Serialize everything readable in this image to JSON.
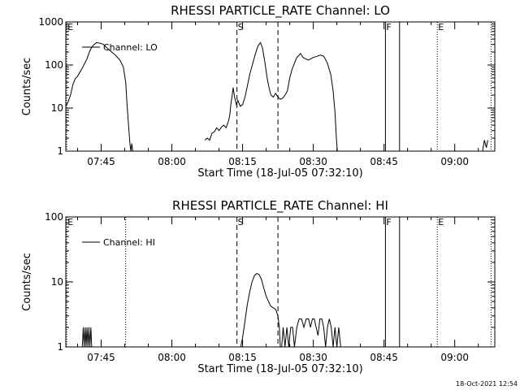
{
  "footer": {
    "timestamp": "18-Oct-2021 12:54"
  },
  "chart_data": [
    {
      "type": "line",
      "title": "RHESSI PARTICLE_RATE Channel: LO",
      "xlabel": "Start Time (18-Jul-05 07:32:10)",
      "ylabel": "Counts/sec",
      "yscale": "log",
      "ylim": [
        1,
        1000
      ],
      "xlim_minutes_after_07_30": [
        7.5,
        98.5
      ],
      "xticks": [
        {
          "label": "07:45",
          "t": 15
        },
        {
          "label": "08:00",
          "t": 30
        },
        {
          "label": "08:15",
          "t": 45
        },
        {
          "label": "08:30",
          "t": 60
        },
        {
          "label": "08:45",
          "t": 75
        },
        {
          "label": "09:00",
          "t": 90
        }
      ],
      "yticks": [
        {
          "label": "1",
          "v": 1
        },
        {
          "label": "10",
          "v": 10
        },
        {
          "label": "100",
          "v": 100
        },
        {
          "label": "1000",
          "v": 1000
        }
      ],
      "legend": {
        "label": "Channel: LO",
        "position": "top-left"
      },
      "markers": [
        {
          "label": "E",
          "t": 7.7,
          "style": "dotted"
        },
        {
          "label": "S",
          "t": 43.8,
          "style": "dashed"
        },
        {
          "label": "",
          "t": 52.5,
          "style": "dashed"
        },
        {
          "label": "F",
          "t": 75.3,
          "style": "solid"
        },
        {
          "label": "",
          "t": 78.3,
          "style": "solid"
        },
        {
          "label": "E",
          "t": 86.3,
          "style": "dotted"
        },
        {
          "label": "",
          "t": 97.7,
          "style": "dotted"
        }
      ],
      "series": [
        {
          "name": "Channel: LO",
          "segments": [
            [
              [
                7.5,
                11
              ],
              [
                8,
                14
              ],
              [
                8.5,
                20
              ],
              [
                9,
                35
              ],
              [
                9.5,
                48
              ],
              [
                10,
                55
              ],
              [
                11,
                85
              ],
              [
                12,
                140
              ],
              [
                12.5,
                200
              ],
              [
                13,
                260
              ],
              [
                13.5,
                300
              ],
              [
                14,
                330
              ],
              [
                14.8,
                320
              ],
              [
                15.5,
                300
              ],
              [
                16.2,
                250
              ],
              [
                17,
                210
              ],
              [
                18,
                170
              ],
              [
                19,
                130
              ],
              [
                19.7,
                90
              ],
              [
                20.2,
                40
              ],
              [
                20.5,
                12
              ],
              [
                20.8,
                4
              ],
              [
                21.1,
                1.5
              ],
              [
                21.3,
                1
              ],
              [
                21.5,
                1.5
              ],
              [
                21.7,
                1
              ]
            ],
            [
              [
                37,
                1.8
              ],
              [
                37.5,
                2
              ],
              [
                38,
                1.8
              ],
              [
                38.5,
                2.6
              ],
              [
                39,
                2.8
              ],
              [
                39.5,
                3.5
              ],
              [
                40,
                3
              ],
              [
                40.5,
                3.6
              ],
              [
                41,
                4
              ],
              [
                41.5,
                3.5
              ],
              [
                42,
                5
              ],
              [
                42.3,
                7
              ],
              [
                42.5,
                12
              ],
              [
                42.8,
                20
              ],
              [
                43,
                30
              ],
              [
                43.3,
                18
              ],
              [
                43.7,
                12
              ],
              [
                44,
                15
              ],
              [
                44.5,
                11
              ],
              [
                45,
                12
              ],
              [
                45.5,
                18
              ],
              [
                46,
                32
              ],
              [
                46.5,
                60
              ],
              [
                47,
                95
              ],
              [
                47.5,
                150
              ],
              [
                48,
                230
              ],
              [
                48.3,
                280
              ],
              [
                48.8,
                330
              ],
              [
                49.2,
                250
              ],
              [
                49.7,
                120
              ],
              [
                50.2,
                50
              ],
              [
                50.6,
                30
              ],
              [
                51,
                20
              ],
              [
                51.5,
                18
              ],
              [
                52,
                22
              ],
              [
                52.5,
                18
              ],
              [
                53,
                16
              ],
              [
                53.5,
                17
              ],
              [
                54,
                20
              ],
              [
                54.5,
                25
              ],
              [
                55,
                50
              ],
              [
                55.5,
                80
              ],
              [
                56,
                110
              ],
              [
                56.5,
                150
              ],
              [
                57,
                170
              ],
              [
                57.3,
                185
              ],
              [
                57.8,
                150
              ],
              [
                58.3,
                140
              ],
              [
                59,
                130
              ],
              [
                59.5,
                140
              ],
              [
                60,
                150
              ],
              [
                60.8,
                160
              ],
              [
                61.5,
                170
              ],
              [
                62.2,
                160
              ],
              [
                63,
                110
              ],
              [
                63.7,
                60
              ],
              [
                64.2,
                25
              ],
              [
                64.6,
                8
              ],
              [
                64.9,
                2
              ],
              [
                65.1,
                1
              ]
            ],
            [
              [
                95.9,
                1
              ],
              [
                96.3,
                1.8
              ],
              [
                96.7,
                1.2
              ],
              [
                97,
                1.8
              ]
            ]
          ]
        }
      ]
    },
    {
      "type": "line",
      "title": "RHESSI PARTICLE_RATE Channel: HI",
      "xlabel": "Start Time (18-Jul-05 07:32:10)",
      "ylabel": "Counts/sec",
      "yscale": "log",
      "ylim": [
        1,
        100
      ],
      "xlim_minutes_after_07_30": [
        7.5,
        98.5
      ],
      "xticks": [
        {
          "label": "07:45",
          "t": 15
        },
        {
          "label": "08:00",
          "t": 30
        },
        {
          "label": "08:15",
          "t": 45
        },
        {
          "label": "08:30",
          "t": 60
        },
        {
          "label": "08:45",
          "t": 75
        },
        {
          "label": "09:00",
          "t": 90
        }
      ],
      "yticks": [
        {
          "label": "1",
          "v": 1
        },
        {
          "label": "10",
          "v": 10
        },
        {
          "label": "100",
          "v": 100
        }
      ],
      "legend": {
        "label": "Channel: HI",
        "position": "top-left"
      },
      "markers": [
        {
          "label": "E",
          "t": 7.7,
          "style": "dotted"
        },
        {
          "label": "",
          "t": 20.2,
          "style": "dotted"
        },
        {
          "label": "S",
          "t": 43.8,
          "style": "dashed"
        },
        {
          "label": "",
          "t": 52.5,
          "style": "dashed"
        },
        {
          "label": "F",
          "t": 75.3,
          "style": "solid"
        },
        {
          "label": "",
          "t": 78.3,
          "style": "solid"
        },
        {
          "label": "E",
          "t": 86.3,
          "style": "dotted"
        },
        {
          "label": "",
          "t": 97.7,
          "style": "dotted"
        }
      ],
      "series": [
        {
          "name": "Channel: HI",
          "segments": [
            [
              [
                11,
                1
              ],
              [
                11.2,
                2
              ],
              [
                11.4,
                1
              ],
              [
                11.6,
                2
              ],
              [
                11.8,
                1
              ],
              [
                12,
                2
              ],
              [
                12.2,
                1
              ],
              [
                12.4,
                2
              ],
              [
                12.6,
                1
              ],
              [
                12.8,
                2
              ],
              [
                13,
                1
              ]
            ],
            [
              [
                44.6,
                1
              ],
              [
                45,
                1.4
              ],
              [
                45.5,
                2.5
              ],
              [
                46,
                4.5
              ],
              [
                46.5,
                7
              ],
              [
                47,
                10
              ],
              [
                47.5,
                12.5
              ],
              [
                48,
                13.5
              ],
              [
                48.5,
                13
              ],
              [
                49,
                11
              ],
              [
                49.5,
                8
              ],
              [
                50,
                6
              ],
              [
                50.5,
                5
              ],
              [
                51,
                4.2
              ],
              [
                51.5,
                4
              ],
              [
                52,
                3.8
              ],
              [
                52.5,
                3
              ],
              [
                52.8,
                2
              ],
              [
                53,
                1
              ]
            ],
            [
              [
                53.3,
                1
              ],
              [
                53.6,
                2
              ],
              [
                54,
                1
              ],
              [
                54.4,
                2
              ],
              [
                54.8,
                1
              ],
              [
                55.2,
                2
              ],
              [
                55.6,
                2
              ],
              [
                56,
                1
              ],
              [
                56.5,
                2
              ],
              [
                57,
                2.7
              ],
              [
                57.5,
                2.7
              ],
              [
                58,
                2
              ],
              [
                58.5,
                2.7
              ],
              [
                59,
                2.7
              ],
              [
                59.4,
                2
              ],
              [
                59.8,
                2.7
              ],
              [
                60.2,
                2.7
              ],
              [
                60.6,
                2
              ],
              [
                61,
                1.5
              ],
              [
                61.4,
                2.7
              ],
              [
                61.8,
                2.7
              ],
              [
                62.2,
                2
              ],
              [
                62.6,
                1
              ],
              [
                63,
                2
              ],
              [
                63.4,
                2.7
              ],
              [
                63.8,
                2
              ],
              [
                64.2,
                1
              ],
              [
                64.6,
                2
              ],
              [
                65,
                1
              ],
              [
                65.4,
                2
              ],
              [
                65.8,
                1
              ],
              [
                66.2,
                1
              ]
            ]
          ]
        }
      ]
    }
  ]
}
